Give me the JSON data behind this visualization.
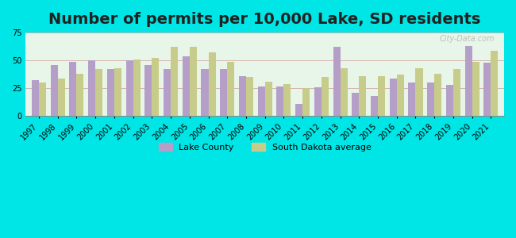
{
  "title": "Number of permits per 10,000 Lake, SD residents",
  "years": [
    1997,
    1998,
    1999,
    2000,
    2001,
    2002,
    2003,
    2004,
    2005,
    2006,
    2007,
    2008,
    2009,
    2010,
    2011,
    2012,
    2013,
    2014,
    2015,
    2016,
    2017,
    2018,
    2019,
    2020,
    2021
  ],
  "lake_county": [
    32,
    46,
    49,
    50,
    42,
    50,
    46,
    42,
    54,
    42,
    42,
    36,
    27,
    27,
    11,
    26,
    62,
    21,
    18,
    34,
    30,
    30,
    28,
    63,
    48
  ],
  "sd_average": [
    30,
    34,
    38,
    42,
    43,
    51,
    52,
    62,
    62,
    57,
    49,
    35,
    31,
    29,
    25,
    35,
    43,
    36,
    36,
    37,
    43,
    38,
    42,
    49,
    59
  ],
  "lake_color": "#b59fc8",
  "sd_color": "#c8cc8a",
  "bg_color_outer": "#00e5e5",
  "bg_color_plot_top": "#e8f5e9",
  "bg_color_plot_bottom": "#c8f0e8",
  "ylim": [
    0,
    75
  ],
  "yticks": [
    0,
    25,
    50,
    75
  ],
  "title_fontsize": 14,
  "tick_fontsize": 7,
  "watermark": "City-Data.com",
  "legend_labels": [
    "Lake County",
    "South Dakota average"
  ]
}
